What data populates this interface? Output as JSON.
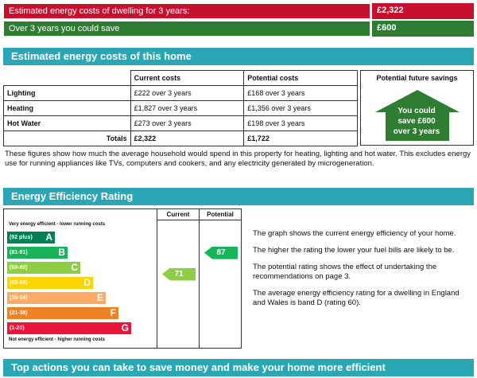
{
  "summary": {
    "row1_label": "Estimated energy costs of dwelling for 3 years:",
    "row1_value": "£2,322",
    "row2_label": "Over 3 years you could save",
    "row2_value": "£600"
  },
  "costs_section": {
    "title": "Estimated energy costs of this home",
    "headers": [
      "Current costs",
      "Potential costs",
      "Potential future savings"
    ],
    "rows": [
      {
        "label": "Lighting",
        "current": "£222 over 3 years",
        "potential": "£168 over 3 years"
      },
      {
        "label": "Heating",
        "current": "£1,827 over 3 years",
        "potential": "£1,356 over 3 years"
      },
      {
        "label": "Hot Water",
        "current": "£273 over 3 years",
        "potential": "£198 over 3 years"
      }
    ],
    "totals_label": "Totals",
    "total_current": "£2,322",
    "total_potential": "£1,722",
    "savings_line1": "You could",
    "savings_line2": "save £600",
    "savings_line3": "over 3 years",
    "note": "These figures show how much the average household would spend in this property for heating, lighting and hot water. This excludes energy use for running appliances like TVs, computers and cookers, and any electricity generated by microgeneration."
  },
  "efficiency_section": {
    "title": "Energy Efficiency Rating",
    "col_current": "Current",
    "col_potential": "Potential",
    "top_caption": "Very energy efficient - lower running costs",
    "bottom_caption": "Not energy efficient - higher running costs",
    "bands": [
      {
        "range": "(92 plus)",
        "letter": "A",
        "color": "#008054"
      },
      {
        "range": "(81-91)",
        "letter": "B",
        "color": "#19b459"
      },
      {
        "range": "(69-80)",
        "letter": "C",
        "color": "#8dce46"
      },
      {
        "range": "(55-68)",
        "letter": "D",
        "color": "#ffd500"
      },
      {
        "range": "(39-54)",
        "letter": "E",
        "color": "#fcaa65"
      },
      {
        "range": "(21-38)",
        "letter": "F",
        "color": "#ef8023"
      },
      {
        "range": "(1-20)",
        "letter": "G",
        "color": "#e9153b"
      }
    ],
    "current_rating": 71,
    "current_color": "#8dce46",
    "potential_rating": 87,
    "potential_color": "#19b459",
    "paragraphs": [
      "The graph shows the current energy efficiency of your home.",
      "The higher the rating the lower your fuel bills are likely to be.",
      "The potential rating shows the effect of undertaking the recommendations on page 3.",
      "The average energy efficiency rating for a dwelling in England and Wales is band D (rating 60)."
    ]
  },
  "actions_section": {
    "title": "Top actions you can take to save money and make your home more efficient"
  }
}
